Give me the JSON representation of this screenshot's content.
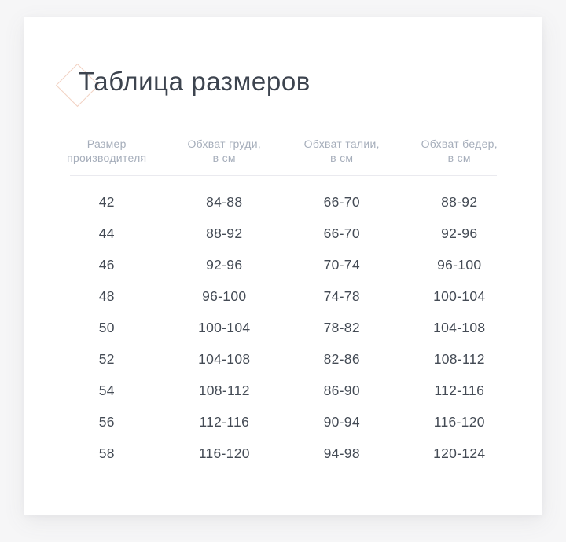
{
  "page": {
    "title": "Таблица размеров"
  },
  "icons": {
    "title_accent": "diamond-outline-icon"
  },
  "colors": {
    "page_background": "#f6f6f7",
    "card_background": "#ffffff",
    "title_text": "#3d444f",
    "header_text": "#a6aebb",
    "cell_text": "#444b55",
    "divider": "#eaeaef",
    "diamond_accent": "#f2d1c2"
  },
  "table": {
    "columns": [
      {
        "line1": "Размер",
        "line2": "производителя"
      },
      {
        "line1": "Обхват груди,",
        "line2": "в см"
      },
      {
        "line1": "Обхват талии,",
        "line2": "в см"
      },
      {
        "line1": "Обхват бедер,",
        "line2": "в см"
      }
    ],
    "rows": [
      [
        "42",
        "84-88",
        "66-70",
        "88-92"
      ],
      [
        "44",
        "88-92",
        "66-70",
        "92-96"
      ],
      [
        "46",
        "92-96",
        "70-74",
        "96-100"
      ],
      [
        "48",
        "96-100",
        "74-78",
        "100-104"
      ],
      [
        "50",
        "100-104",
        "78-82",
        "104-108"
      ],
      [
        "52",
        "104-108",
        "82-86",
        "108-112"
      ],
      [
        "54",
        "108-112",
        "86-90",
        "112-116"
      ],
      [
        "56",
        "112-116",
        "90-94",
        "116-120"
      ],
      [
        "58",
        "116-120",
        "94-98",
        "120-124"
      ]
    ]
  }
}
